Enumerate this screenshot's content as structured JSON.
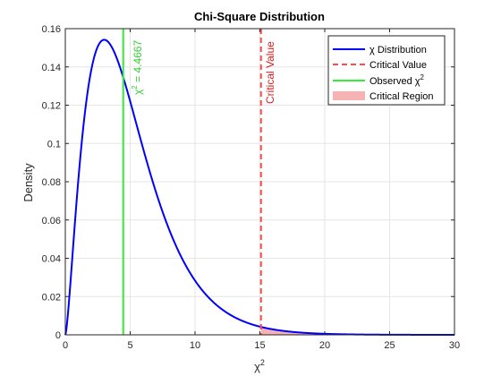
{
  "chart_data": {
    "type": "line",
    "title": "Chi-Square Distribution",
    "xlabel": "χ",
    "xlabel_superscript": "2",
    "ylabel": "Density",
    "xlim": [
      0,
      30
    ],
    "ylim": [
      0,
      0.16
    ],
    "xticks": [
      0,
      5,
      10,
      15,
      20,
      25,
      30
    ],
    "xtick_labels": [
      "0",
      "5",
      "10",
      "15",
      "20",
      "25",
      "30"
    ],
    "yticks": [
      0,
      0.02,
      0.04,
      0.06,
      0.08,
      0.1,
      0.12,
      0.14,
      0.16
    ],
    "ytick_labels": [
      "0",
      "0.02",
      "0.04",
      "0.06",
      "0.08",
      "0.1",
      "0.12",
      "0.14",
      "0.16"
    ],
    "grid": true,
    "legend_placement": "top-right",
    "degrees_of_freedom": 5,
    "series": [
      {
        "name": "χ Distribution",
        "name_superscript": "2",
        "style": "solid-line",
        "color": "#0000ff",
        "x": [
          0,
          0.25,
          0.5,
          0.75,
          1,
          1.5,
          2,
          2.5,
          3,
          3.5,
          4,
          4.5,
          5,
          6,
          7,
          8,
          9,
          10,
          11,
          12,
          13,
          14,
          15,
          16,
          18,
          20,
          22,
          24,
          26,
          28,
          30
        ],
        "y": [
          0,
          0.0147,
          0.0366,
          0.0589,
          0.0807,
          0.1091,
          0.1384,
          0.15,
          0.1542,
          0.1525,
          0.1465,
          0.1371,
          0.122,
          0.097,
          0.0744,
          0.0551,
          0.0397,
          0.0281,
          0.0195,
          0.0133,
          0.009,
          0.006,
          0.004,
          0.0026,
          0.0011,
          0.0005,
          0.0002,
          0.0001,
          0,
          0,
          0
        ]
      },
      {
        "name": "Critical Value",
        "style": "dashed-vline",
        "color": "#ff4b4b",
        "label_color": "#d92020",
        "x": 15.0863
      },
      {
        "name": "Observed χ",
        "name_superscript": "2",
        "style": "solid-vline",
        "color": "#33ee33",
        "label_color": "#33cc33",
        "x": 4.4667
      },
      {
        "name": "Critical Region",
        "style": "area",
        "color": "#f7b3b3",
        "from_x": 15.0863
      }
    ],
    "annotations": [
      {
        "text": "Critical Value",
        "target": "Critical Value",
        "orientation": "vertical"
      },
      {
        "text": " = 4.4667",
        "prefix": "χ",
        "superscript": "2",
        "target": "Observed χ",
        "orientation": "vertical"
      }
    ]
  }
}
